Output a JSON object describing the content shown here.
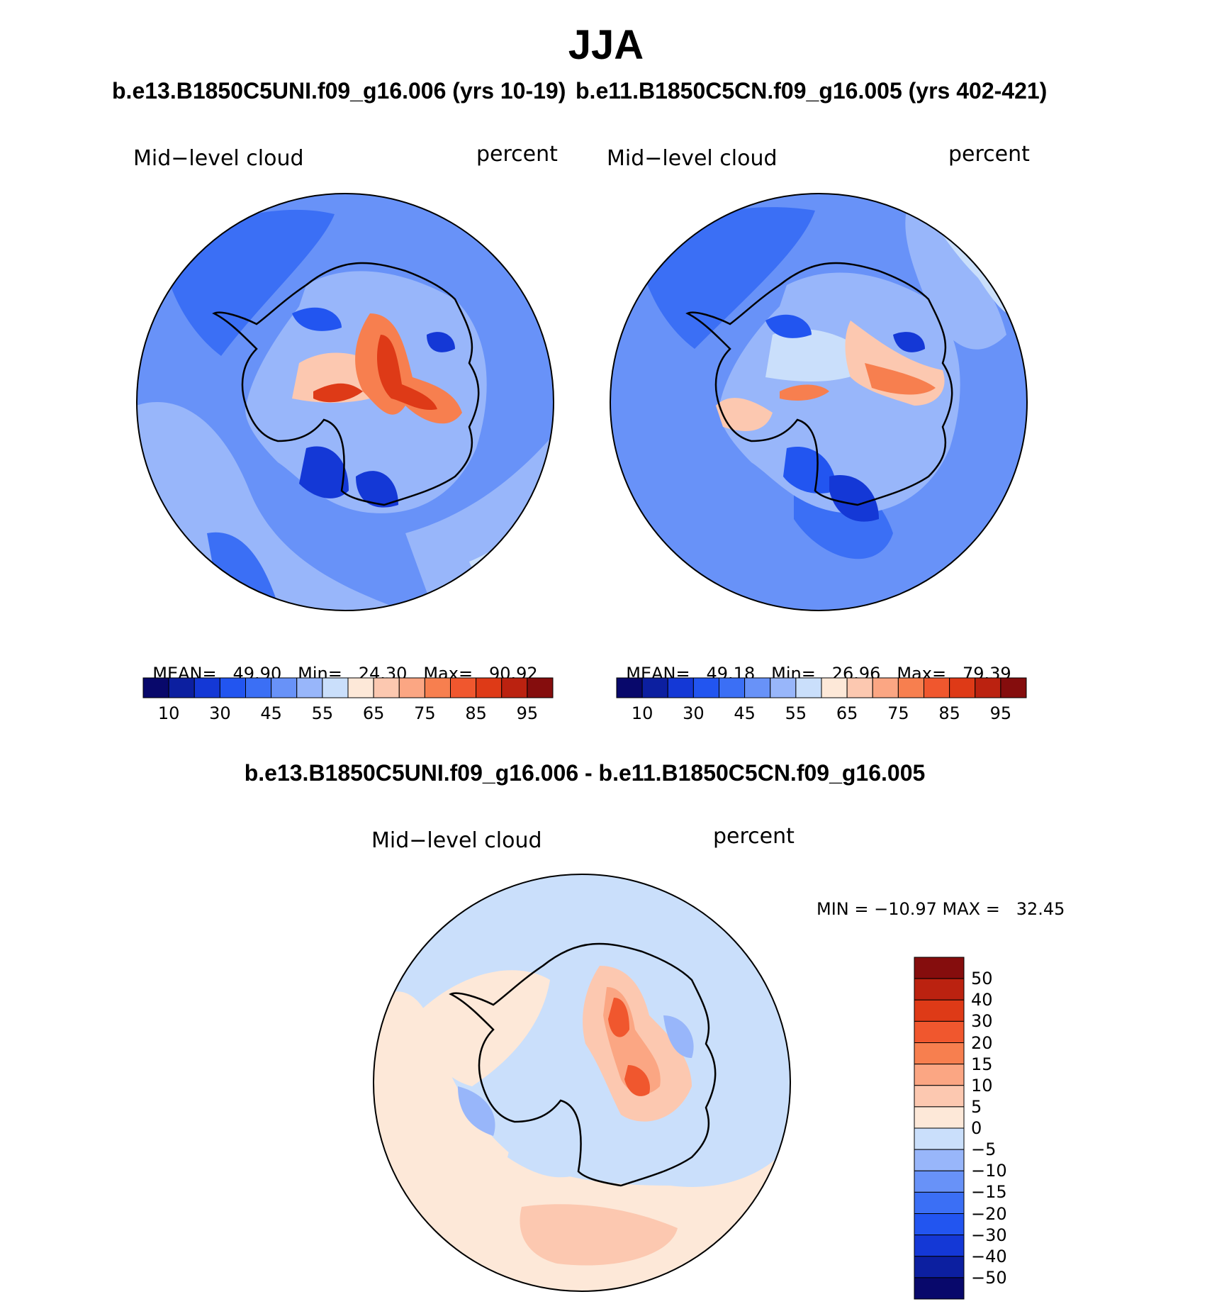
{
  "title": "JJA",
  "panel_left": {
    "run_title": "b.e13.B1850C5UNI.f09_g16.006 (yrs 10-19)",
    "variable": "Mid−level cloud",
    "units": "percent",
    "stats": {
      "mean_label": "MEAN=",
      "mean": "49.90",
      "min_label": "Min=",
      "min": "24.30",
      "max_label": "Max=",
      "max": "90.92"
    }
  },
  "panel_right": {
    "run_title": "b.e11.B1850C5CN.f09_g16.005 (yrs 402-421)",
    "variable": "Mid−level cloud",
    "units": "percent",
    "stats": {
      "mean_label": "MEAN=",
      "mean": "49.18",
      "min_label": "Min=",
      "min": "26.96",
      "max_label": "Max=",
      "max": "79.39"
    }
  },
  "colorbar_abs": {
    "colors": [
      "#08086b",
      "#0c1fa0",
      "#1438d6",
      "#2255f0",
      "#3b6ff5",
      "#6892f8",
      "#98b6fa",
      "#cadffb",
      "#fde8d8",
      "#fcc8b0",
      "#fba683",
      "#f77f4f",
      "#f0572e",
      "#de3a17",
      "#bb2210",
      "#850d0d"
    ],
    "ticks": [
      "10",
      "30",
      "45",
      "55",
      "65",
      "75",
      "85",
      "95"
    ]
  },
  "panel_diff": {
    "run_title": "b.e13.B1850C5UNI.f09_g16.006 - b.e11.B1850C5CN.f09_g16.005",
    "variable": "Mid−level cloud",
    "units": "percent",
    "range_label": "MIN = −10.97 MAX =   32.45"
  },
  "colorbar_diff": {
    "colors": [
      "#850d0d",
      "#bb2210",
      "#de3a17",
      "#f0572e",
      "#f77f4f",
      "#fba683",
      "#fcc8b0",
      "#fde8d8",
      "#cadffb",
      "#98b6fa",
      "#6892f8",
      "#3b6ff5",
      "#2255f0",
      "#1438d6",
      "#0c1fa0",
      "#08086b"
    ],
    "ticks": [
      "50",
      "40",
      "30",
      "20",
      "15",
      "10",
      "5",
      "0",
      "−5",
      "−10",
      "−15",
      "−20",
      "−30",
      "−40",
      "−50"
    ]
  }
}
